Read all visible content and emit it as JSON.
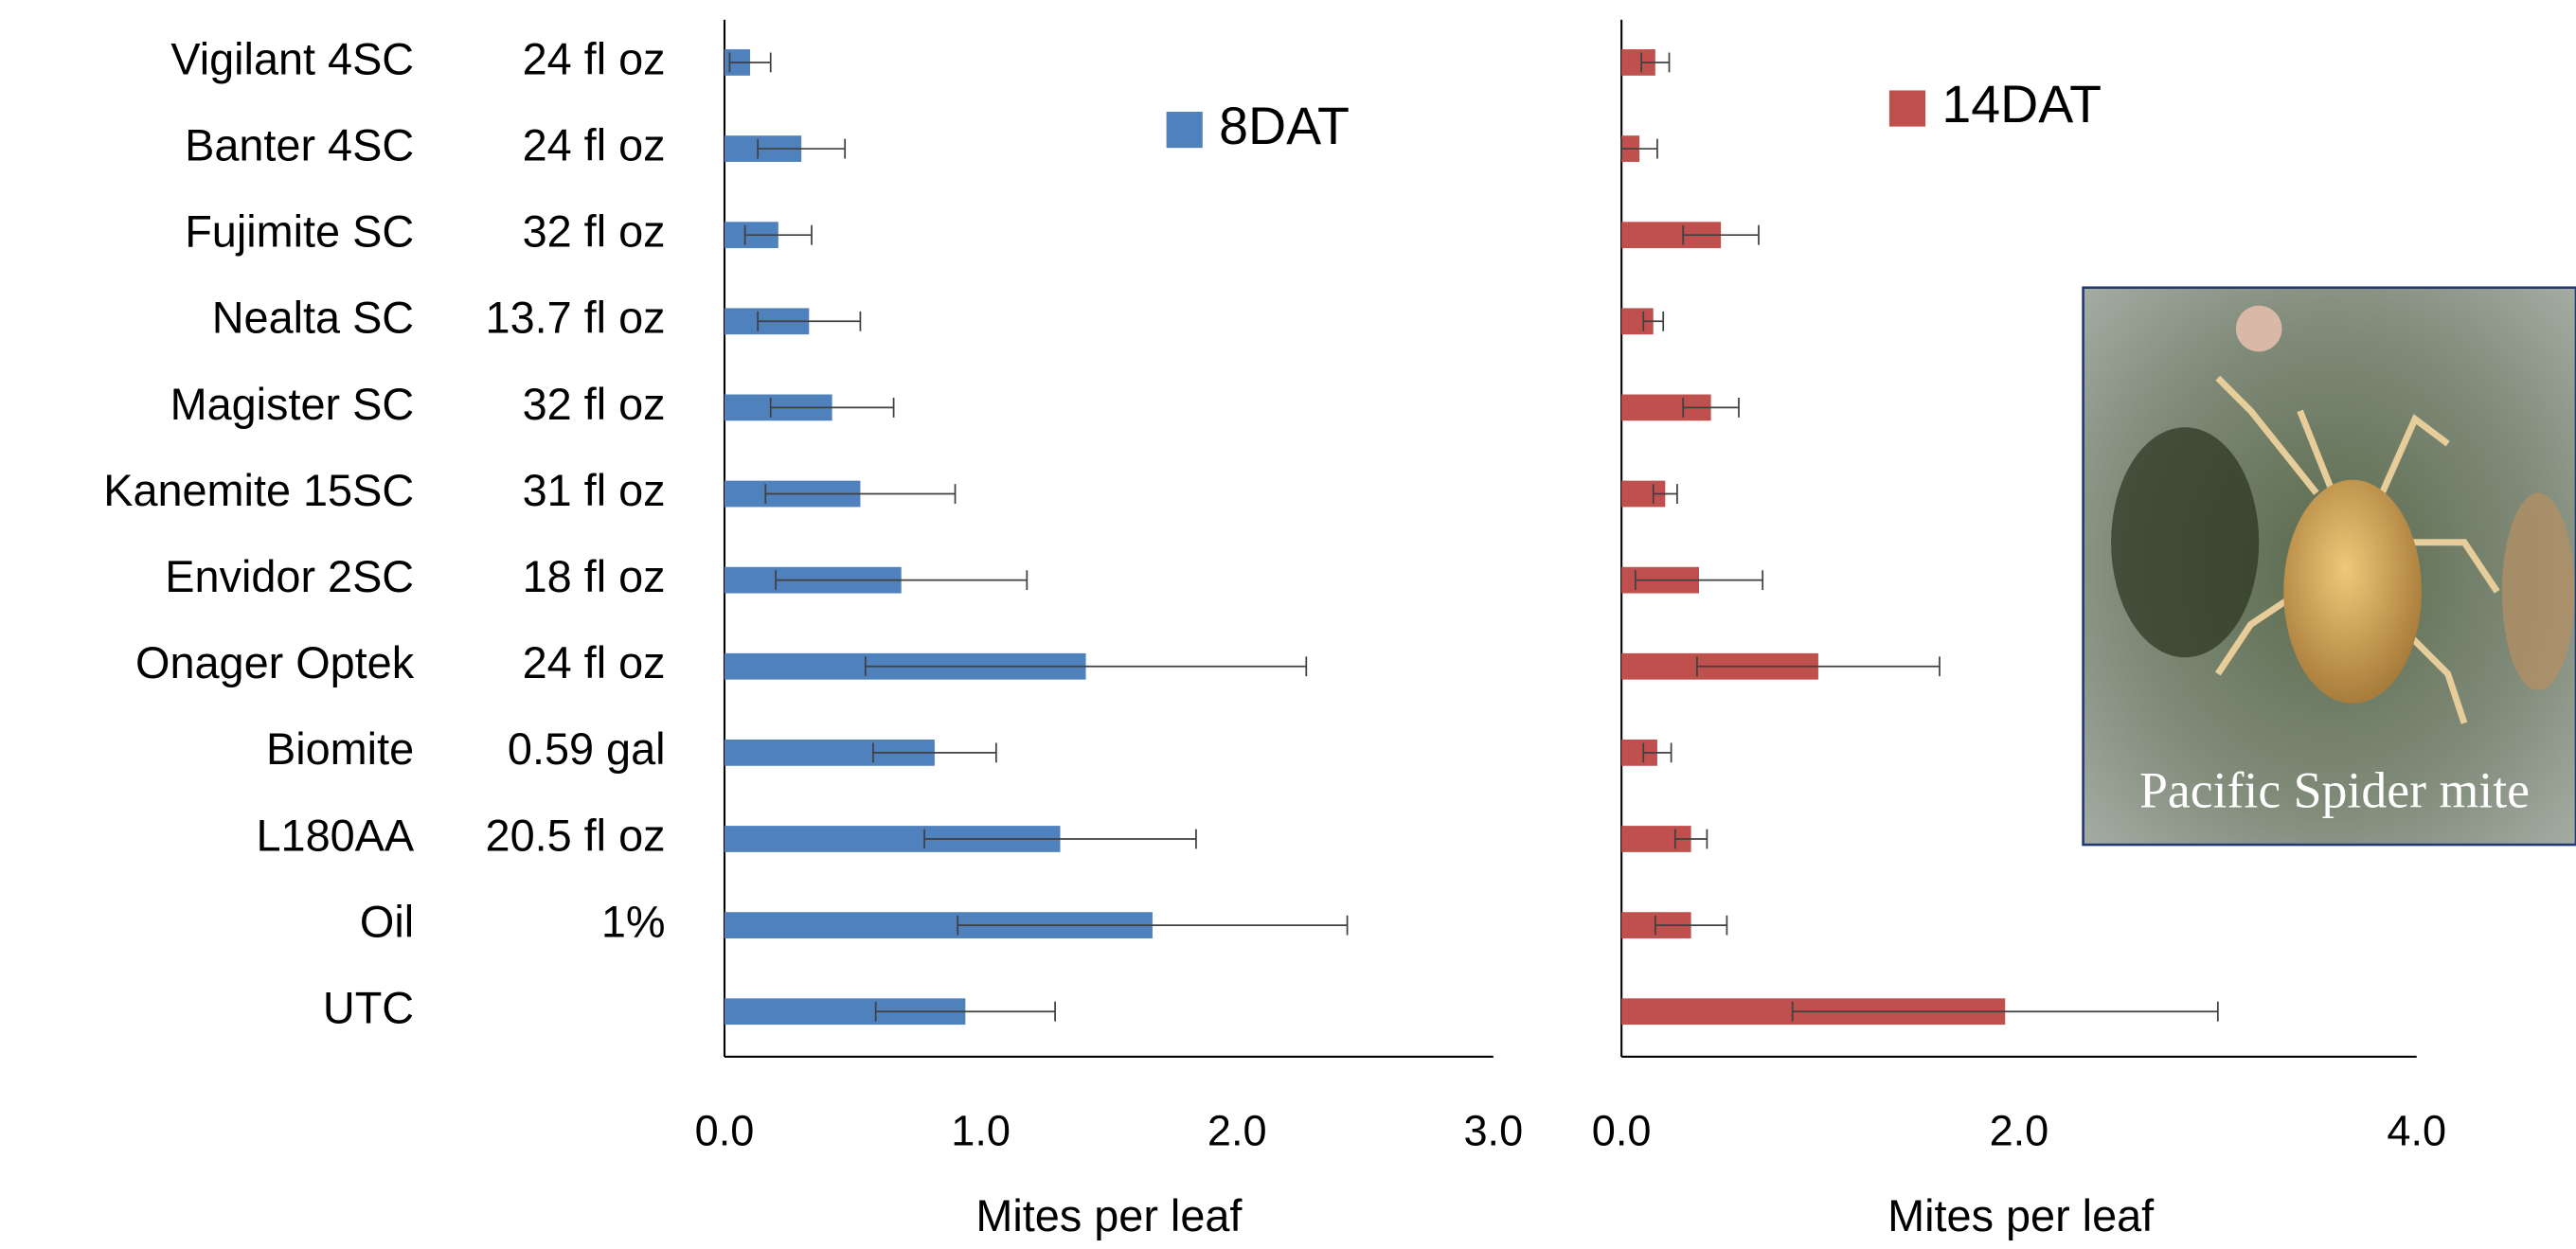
{
  "chart_data": [
    {
      "type": "bar",
      "orientation": "horizontal",
      "categories": [
        "Vigilant 4SC",
        "Banter 4SC",
        "Fujimite SC",
        "Nealta SC",
        "Magister SC",
        "Kanemite 15SC",
        "Envidor 2SC",
        "Onager Optek",
        "Biomite",
        "L180AA",
        "Oil",
        "UTC"
      ],
      "doses": [
        "24 fl oz",
        "24 fl oz",
        "32 fl oz",
        "13.7 fl oz",
        "32 fl oz",
        "31 fl oz",
        "18 fl oz",
        "24 fl oz",
        "0.59 gal",
        "20.5 fl oz",
        "1%",
        null
      ],
      "series": [
        {
          "name": "8DAT",
          "color": "#4f81bd",
          "values": [
            0.1,
            0.3,
            0.21,
            0.33,
            0.42,
            0.53,
            0.69,
            1.41,
            0.82,
            1.31,
            1.67,
            0.94
          ],
          "errors": [
            0.08,
            0.17,
            0.13,
            0.2,
            0.24,
            0.37,
            0.49,
            0.86,
            0.24,
            0.53,
            0.76,
            0.35
          ]
        }
      ],
      "xlabel": "Mites per leaf",
      "xlim": [
        0,
        3
      ],
      "xticks": [
        {
          "value": 0,
          "label": "0.0"
        },
        {
          "value": 1,
          "label": "1.0"
        },
        {
          "value": 2,
          "label": "2.0"
        },
        {
          "value": 3,
          "label": "3.0"
        }
      ]
    },
    {
      "type": "bar",
      "orientation": "horizontal",
      "series": [
        {
          "name": "14DAT",
          "color": "#c0504d",
          "values": [
            0.17,
            0.09,
            0.5,
            0.16,
            0.45,
            0.22,
            0.39,
            0.99,
            0.18,
            0.35,
            0.35,
            1.93
          ],
          "errors": [
            0.07,
            0.09,
            0.19,
            0.05,
            0.14,
            0.06,
            0.32,
            0.61,
            0.07,
            0.08,
            0.18,
            1.07
          ]
        }
      ],
      "xlabel": "Mites per leaf",
      "xlim": [
        0,
        4
      ],
      "xticks": [
        {
          "value": 0,
          "label": "0.0"
        },
        {
          "value": 2,
          "label": "2.0"
        },
        {
          "value": 4,
          "label": "4.0"
        }
      ]
    }
  ],
  "photo_caption": "Pacific Spider mite"
}
